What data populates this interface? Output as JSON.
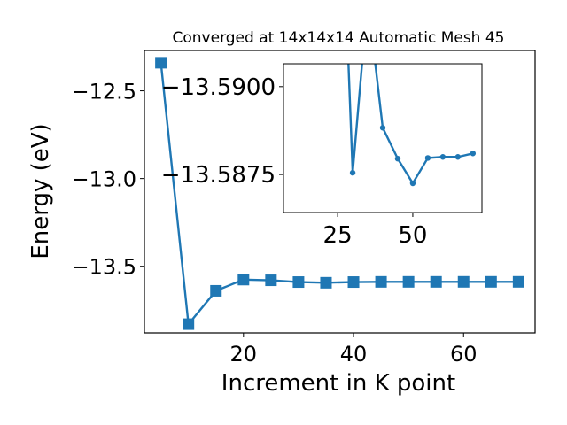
{
  "chart_data": [
    {
      "type": "line",
      "title": "Converged at 14x14x14 Automatic Mesh 45",
      "xlabel": "Increment in K point",
      "ylabel": "Energy (eV)",
      "xlim": [
        2,
        73
      ],
      "ylim": [
        -13.88,
        -12.27
      ],
      "xticks": [
        20,
        40,
        60
      ],
      "xtick_labels": [
        "20",
        "40",
        "60"
      ],
      "yticks": [
        -12.5,
        -13.0,
        -13.5
      ],
      "ytick_labels": [
        "−12.5",
        "−13.0",
        "−13.5"
      ],
      "grid": false,
      "marker": "square",
      "color": "#1f77b4",
      "series": [
        {
          "x": [
            5,
            10,
            15,
            20,
            25,
            30,
            35,
            40,
            45,
            50,
            55,
            60,
            65,
            70
          ],
          "y": [
            -12.34,
            -13.83,
            -13.64,
            -13.576,
            -13.58,
            -13.59,
            -13.594,
            -13.59,
            -13.589,
            -13.5889,
            -13.5889,
            -13.5888,
            -13.5888,
            -13.5888
          ]
        }
      ]
    },
    {
      "type": "line",
      "inset": true,
      "xlim": [
        7,
        73
      ],
      "ylim": [
        -13.58642,
        -13.59065
      ],
      "xticks": [
        25,
        50
      ],
      "xtick_labels": [
        "25",
        "50"
      ],
      "yticks": [
        -13.59,
        -13.5875
      ],
      "ytick_labels": [
        "−13.5900",
        "−13.5875"
      ],
      "grid": false,
      "marker": "circle",
      "color": "#1f77b4",
      "series": [
        {
          "x": [
            28,
            30,
            35,
            40,
            45,
            50,
            55,
            60,
            65,
            70
          ],
          "y": [
            -13.592,
            -13.58755,
            -13.5925,
            -13.58883,
            -13.58795,
            -13.58725,
            -13.58797,
            -13.588,
            -13.588,
            -13.5881
          ]
        }
      ]
    }
  ]
}
